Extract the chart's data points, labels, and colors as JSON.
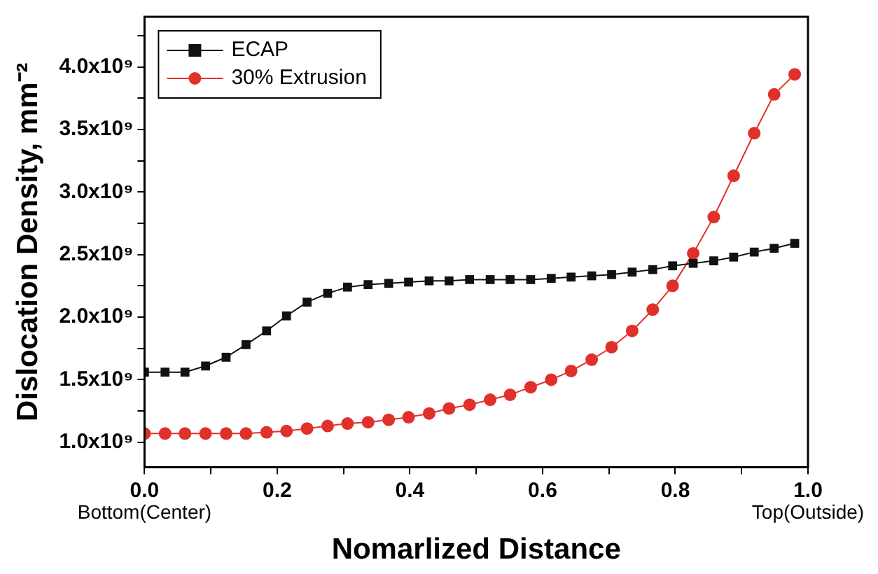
{
  "chart_data": {
    "type": "line",
    "xlabel": "Nomarlized Distance",
    "ylabel": "Dislocation Density, mm⁻²",
    "x": [
      0,
      0.031,
      0.061,
      0.092,
      0.123,
      0.153,
      0.184,
      0.214,
      0.245,
      0.276,
      0.306,
      0.337,
      0.368,
      0.398,
      0.429,
      0.459,
      0.49,
      0.521,
      0.551,
      0.582,
      0.613,
      0.643,
      0.674,
      0.704,
      0.735,
      0.766,
      0.796,
      0.827,
      0.858,
      0.888,
      0.919,
      0.949,
      0.98
    ],
    "series": [
      {
        "name": "ECAP",
        "color": "#111111",
        "marker": "square",
        "values": [
          1560000000.0,
          1560000000.0,
          1560000000.0,
          1610000000.0,
          1680000000.0,
          1780000000.0,
          1890000000.0,
          2010000000.0,
          2120000000.0,
          2190000000.0,
          2240000000.0,
          2260000000.0,
          2270000000.0,
          2280000000.0,
          2290000000.0,
          2290000000.0,
          2300000000.0,
          2300000000.0,
          2300000000.0,
          2300000000.0,
          2310000000.0,
          2320000000.0,
          2330000000.0,
          2340000000.0,
          2360000000.0,
          2380000000.0,
          2410000000.0,
          2430000000.0,
          2450000000.0,
          2480000000.0,
          2520000000.0,
          2550000000.0,
          2590000000.0
        ]
      },
      {
        "name": "30% Extrusion",
        "color": "#e0302a",
        "marker": "circle",
        "values": [
          1070000000.0,
          1070000000.0,
          1070000000.0,
          1070000000.0,
          1070000000.0,
          1070000000.0,
          1080000000.0,
          1090000000.0,
          1110000000.0,
          1130000000.0,
          1150000000.0,
          1160000000.0,
          1180000000.0,
          1200000000.0,
          1230000000.0,
          1270000000.0,
          1300000000.0,
          1340000000.0,
          1380000000.0,
          1440000000.0,
          1500000000.0,
          1570000000.0,
          1660000000.0,
          1760000000.0,
          1890000000.0,
          2060000000.0,
          2250000000.0,
          2510000000.0,
          2800000000.0,
          3130000000.0,
          3470000000.0,
          3780000000.0,
          3940000000.0
        ]
      }
    ],
    "xlim": [
      0,
      1
    ],
    "xticks": [
      {
        "value": 0,
        "label": "0.0"
      },
      {
        "value": 0.1,
        "label": null
      },
      {
        "value": 0.2,
        "label": "0.2"
      },
      {
        "value": 0.3,
        "label": null
      },
      {
        "value": 0.4,
        "label": "0.4"
      },
      {
        "value": 0.5,
        "label": null
      },
      {
        "value": 0.6,
        "label": "0.6"
      },
      {
        "value": 0.7,
        "label": null
      },
      {
        "value": 0.8,
        "label": "0.8"
      },
      {
        "value": 0.9,
        "label": null
      },
      {
        "value": 1,
        "label": "1.0"
      }
    ],
    "ylim": [
      800000000.0,
      4400000000.0
    ],
    "yticks": [
      {
        "value": 1000000000.0,
        "label": "1.0x10⁹"
      },
      {
        "value": 1250000000.0,
        "label": null
      },
      {
        "value": 1500000000.0,
        "label": "1.5x10⁹"
      },
      {
        "value": 1750000000.0,
        "label": null
      },
      {
        "value": 2000000000.0,
        "label": "2.0x10⁹"
      },
      {
        "value": 2250000000.0,
        "label": null
      },
      {
        "value": 2500000000.0,
        "label": "2.5x10⁹"
      },
      {
        "value": 2750000000.0,
        "label": null
      },
      {
        "value": 3000000000.0,
        "label": "3.0x10⁹"
      },
      {
        "value": 3250000000.0,
        "label": null
      },
      {
        "value": 3500000000.0,
        "label": "3.5x10⁹"
      },
      {
        "value": 3750000000.0,
        "label": null
      },
      {
        "value": 4000000000.0,
        "label": "4.0x10⁹"
      },
      {
        "value": 4250000000.0,
        "label": null
      }
    ],
    "annotations": [
      "Bottom(Center)",
      "Top(Outside)"
    ],
    "grid": false,
    "legend": "top left",
    "line_style": "solid"
  }
}
